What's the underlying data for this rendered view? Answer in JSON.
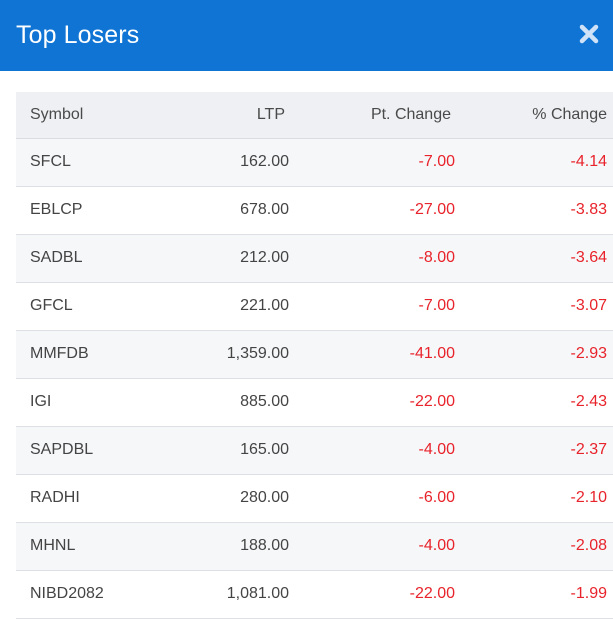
{
  "colors": {
    "accent": "#0f74d4",
    "negative": "#e8232b"
  },
  "header": {
    "title": "Top Losers",
    "close_icon": "close-icon"
  },
  "table": {
    "columns": [
      "Symbol",
      "LTP",
      "Pt. Change",
      "% Change"
    ],
    "rows": [
      {
        "symbol": "SFCL",
        "ltp": "162.00",
        "pt_change": "-7.00",
        "pct_change": "-4.14"
      },
      {
        "symbol": "EBLCP",
        "ltp": "678.00",
        "pt_change": "-27.00",
        "pct_change": "-3.83"
      },
      {
        "symbol": "SADBL",
        "ltp": "212.00",
        "pt_change": "-8.00",
        "pct_change": "-3.64"
      },
      {
        "symbol": "GFCL",
        "ltp": "221.00",
        "pt_change": "-7.00",
        "pct_change": "-3.07"
      },
      {
        "symbol": "MMFDB",
        "ltp": "1,359.00",
        "pt_change": "-41.00",
        "pct_change": "-2.93"
      },
      {
        "symbol": "IGI",
        "ltp": "885.00",
        "pt_change": "-22.00",
        "pct_change": "-2.43"
      },
      {
        "symbol": "SAPDBL",
        "ltp": "165.00",
        "pt_change": "-4.00",
        "pct_change": "-2.37"
      },
      {
        "symbol": "RADHI",
        "ltp": "280.00",
        "pt_change": "-6.00",
        "pct_change": "-2.10"
      },
      {
        "symbol": "MHNL",
        "ltp": "188.00",
        "pt_change": "-4.00",
        "pct_change": "-2.08"
      },
      {
        "symbol": "NIBD2082",
        "ltp": "1,081.00",
        "pt_change": "-22.00",
        "pct_change": "-1.99"
      }
    ]
  }
}
